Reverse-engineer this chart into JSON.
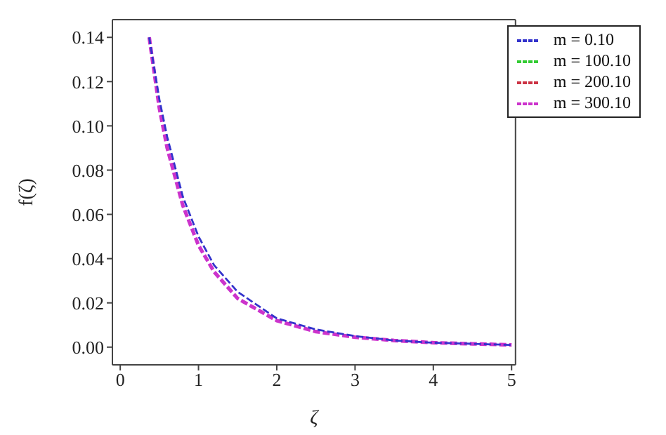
{
  "chart_data": {
    "type": "line",
    "xlabel": "ζ",
    "ylabel": "f(ζ)",
    "xlim": [
      -0.1,
      5.05
    ],
    "xticks": [
      0,
      1,
      2,
      3,
      4,
      5
    ],
    "ylim": [
      -0.008,
      0.148
    ],
    "yticks": [
      {
        "value": 0,
        "label": "0.00"
      },
      0.02,
      0.04,
      0.06,
      0.08,
      {
        "value": 0.1,
        "label": "0.10"
      },
      0.12,
      0.14
    ],
    "x": [
      0.37,
      0.5,
      0.6,
      0.8,
      1.0,
      1.2,
      1.5,
      2.0,
      2.5,
      3.0,
      3.5,
      4.0,
      4.5,
      5.0
    ],
    "series": [
      {
        "name": "m = 0.10",
        "color": "#3333cc",
        "values": [
          0.14,
          0.112,
          0.095,
          0.068,
          0.05,
          0.037,
          0.025,
          0.013,
          0.008,
          0.005,
          0.003,
          0.002,
          0.0015,
          0.001
        ]
      },
      {
        "name": "m = 100.10",
        "color": "#33cc33",
        "values": [
          null,
          null,
          null,
          null,
          null,
          null,
          null,
          null,
          null,
          null,
          null,
          null,
          null,
          null
        ]
      },
      {
        "name": "m = 200.10",
        "color": "#cc3344",
        "values": [
          null,
          null,
          null,
          null,
          null,
          null,
          null,
          null,
          null,
          null,
          null,
          null,
          null,
          null
        ]
      },
      {
        "name": "m = 300.10",
        "color": "#cc33cc",
        "values": [
          0.14,
          0.108,
          0.09,
          0.064,
          0.046,
          0.034,
          0.022,
          0.012,
          0.007,
          0.0045,
          0.003,
          0.002,
          0.0015,
          0.001
        ]
      }
    ],
    "legend": "top right",
    "marker": "none",
    "line_style": "dashed"
  }
}
